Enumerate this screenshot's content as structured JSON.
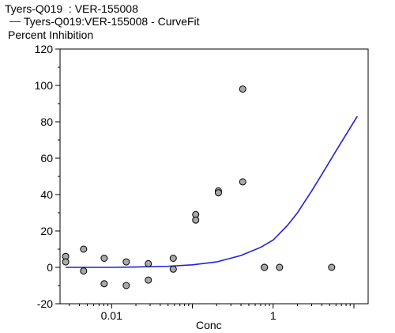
{
  "chart_data": {
    "type": "scatter",
    "title": "Tyers-Q019  : VER-155008",
    "ylabel": "Percent Inhibition",
    "xlabel": "Conc",
    "x_scale": "log",
    "xlim": [
      0.0023,
      15
    ],
    "ylim": [
      -20,
      120
    ],
    "y_ticks": [
      -20,
      0,
      20,
      40,
      60,
      80,
      100,
      120
    ],
    "x_ticks": [
      {
        "value": 0.01,
        "label": "0.01"
      },
      {
        "value": 1,
        "label": "1"
      }
    ],
    "grid": false,
    "legend_position": "top-left",
    "series": [
      {
        "name": "Tyers-Q019:VER-155008 - CurveFit",
        "kind": "line",
        "color": "#2020e0",
        "x": [
          0.0027,
          0.005,
          0.01,
          0.02,
          0.05,
          0.1,
          0.2,
          0.4,
          0.7,
          1.0,
          1.5,
          2.0,
          3.0,
          4.0,
          6.0,
          8.0,
          11.0
        ],
        "y": [
          0,
          0,
          0,
          0.2,
          0.6,
          1.4,
          3.0,
          6.5,
          11,
          15,
          23,
          30,
          42,
          51,
          64,
          73,
          83
        ]
      },
      {
        "name": "",
        "kind": "points",
        "color": "#a8a8a8",
        "x": [
          0.0027,
          0.0027,
          0.0045,
          0.0045,
          0.0081,
          0.0081,
          0.0152,
          0.0152,
          0.0285,
          0.0285,
          0.058,
          0.058,
          0.11,
          0.11,
          0.21,
          0.21,
          0.42,
          0.42,
          0.78,
          0.78,
          1.2,
          5.3
        ],
        "y": [
          6,
          3,
          10,
          -2,
          5,
          -9,
          3,
          -10,
          2,
          -7,
          5,
          -1,
          29,
          26,
          42,
          41,
          47,
          98,
          0,
          0,
          0,
          0
        ]
      }
    ]
  }
}
